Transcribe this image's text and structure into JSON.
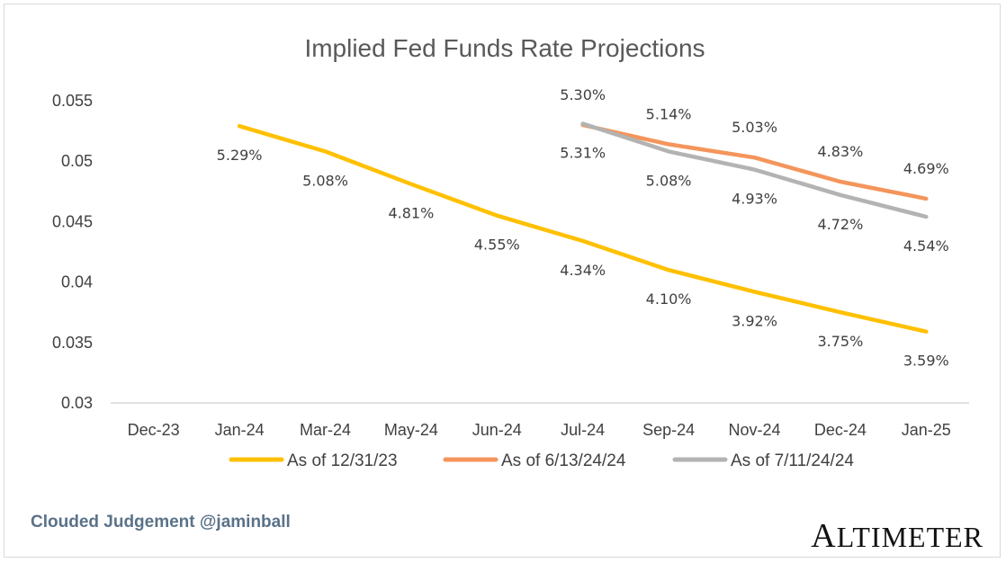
{
  "chart_data": {
    "type": "line",
    "title": "Implied Fed Funds Rate Projections",
    "xlabel": "",
    "ylabel": "",
    "categories": [
      "Dec-23",
      "Jan-24",
      "Mar-24",
      "May-24",
      "Jun-24",
      "Jul-24",
      "Sep-24",
      "Nov-24",
      "Dec-24",
      "Jan-25"
    ],
    "y_ticks": [
      "0.055",
      "0.05",
      "0.045",
      "0.04",
      "0.035",
      "0.03"
    ],
    "ylim": [
      0.03,
      0.055
    ],
    "grid": "horizontal baseline only",
    "legend_position": "bottom",
    "series": [
      {
        "name": "As of 12/31/23",
        "color": "#FFC000",
        "values": [
          null,
          0.0529,
          0.0508,
          0.0481,
          0.0455,
          0.0434,
          0.041,
          0.0392,
          0.0375,
          0.0359
        ],
        "labels": [
          null,
          "5.29%",
          "5.08%",
          "4.81%",
          "4.55%",
          "4.34%",
          "4.10%",
          "3.92%",
          "3.75%",
          "3.59%"
        ],
        "label_pos": "below"
      },
      {
        "name": "As of 6/13/24/24",
        "color": "#F4955B",
        "values": [
          null,
          null,
          null,
          null,
          null,
          0.053,
          0.0514,
          0.0503,
          0.0483,
          0.0469
        ],
        "labels": [
          null,
          null,
          null,
          null,
          null,
          "5.30%",
          "5.14%",
          "5.03%",
          "4.83%",
          "4.69%"
        ],
        "label_pos": "above"
      },
      {
        "name": "As of 7/11/24/24",
        "color": "#B3B3B3",
        "values": [
          null,
          null,
          null,
          null,
          null,
          0.0531,
          0.0508,
          0.0493,
          0.0472,
          0.0454
        ],
        "labels": [
          null,
          null,
          null,
          null,
          null,
          "5.31%",
          "5.08%",
          "4.93%",
          "4.72%",
          "4.54%"
        ],
        "label_pos": "below"
      }
    ]
  },
  "footer": {
    "credit": "Clouded Judgement @jaminball",
    "logo": "Altimeter"
  }
}
